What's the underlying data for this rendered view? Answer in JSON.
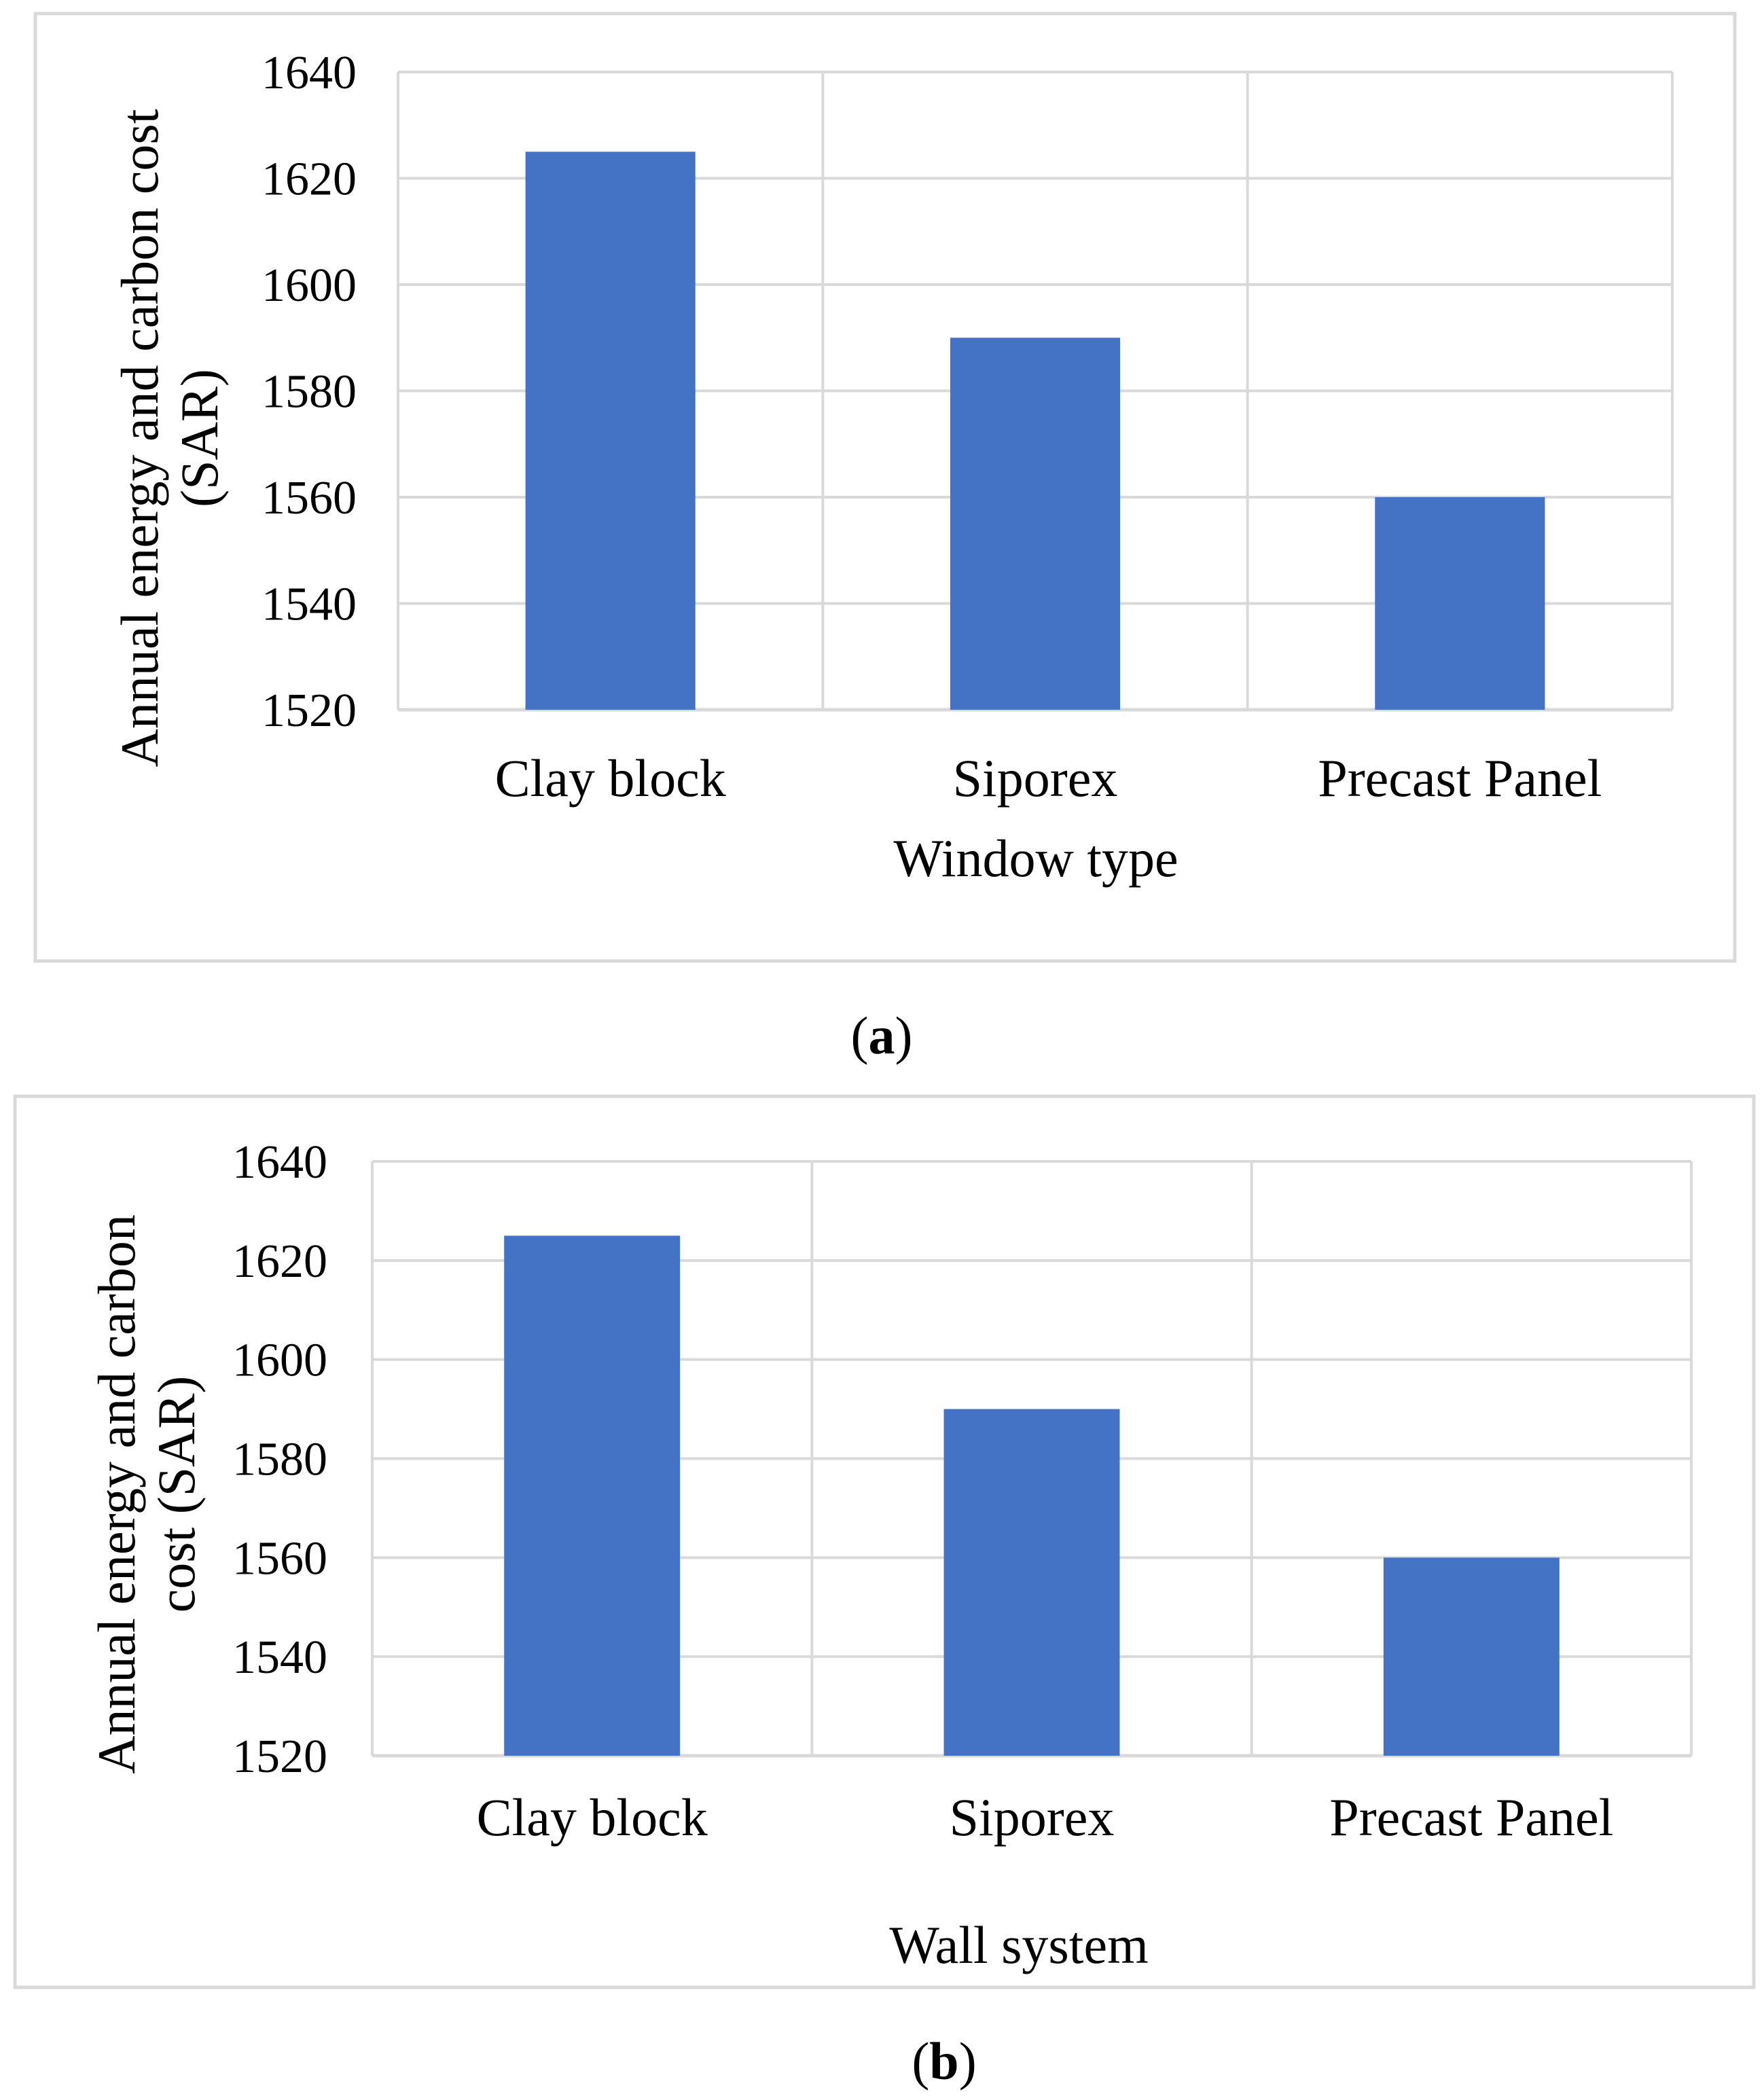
{
  "chart_data": [
    {
      "type": "bar",
      "panel_label": "a",
      "categories": [
        "Clay block",
        "Siporex",
        "Precast Panel"
      ],
      "values": [
        1625,
        1590,
        1560
      ],
      "xlabel": "Window type",
      "ylabel_lines": [
        "Annual energy and carbon cost",
        "(SAR)"
      ],
      "ylim": [
        1520,
        1640
      ],
      "yticks": [
        "1520",
        "1540",
        "1560",
        "1580",
        "1600",
        "1620",
        "1640"
      ],
      "grid": true,
      "bar_color": "#4472C4"
    },
    {
      "type": "bar",
      "panel_label": "b",
      "categories": [
        "Clay block",
        "Siporex",
        "Precast Panel"
      ],
      "values": [
        1625,
        1590,
        1560
      ],
      "xlabel": "Wall system",
      "ylabel_lines": [
        "Annual energy and carbon",
        "cost  (SAR)"
      ],
      "ylim": [
        1520,
        1640
      ],
      "yticks": [
        "1520",
        "1540",
        "1560",
        "1580",
        "1600",
        "1620",
        "1640"
      ],
      "grid": true,
      "bar_color": "#4472C4"
    }
  ],
  "captions": {
    "a": "a",
    "b": "b"
  }
}
